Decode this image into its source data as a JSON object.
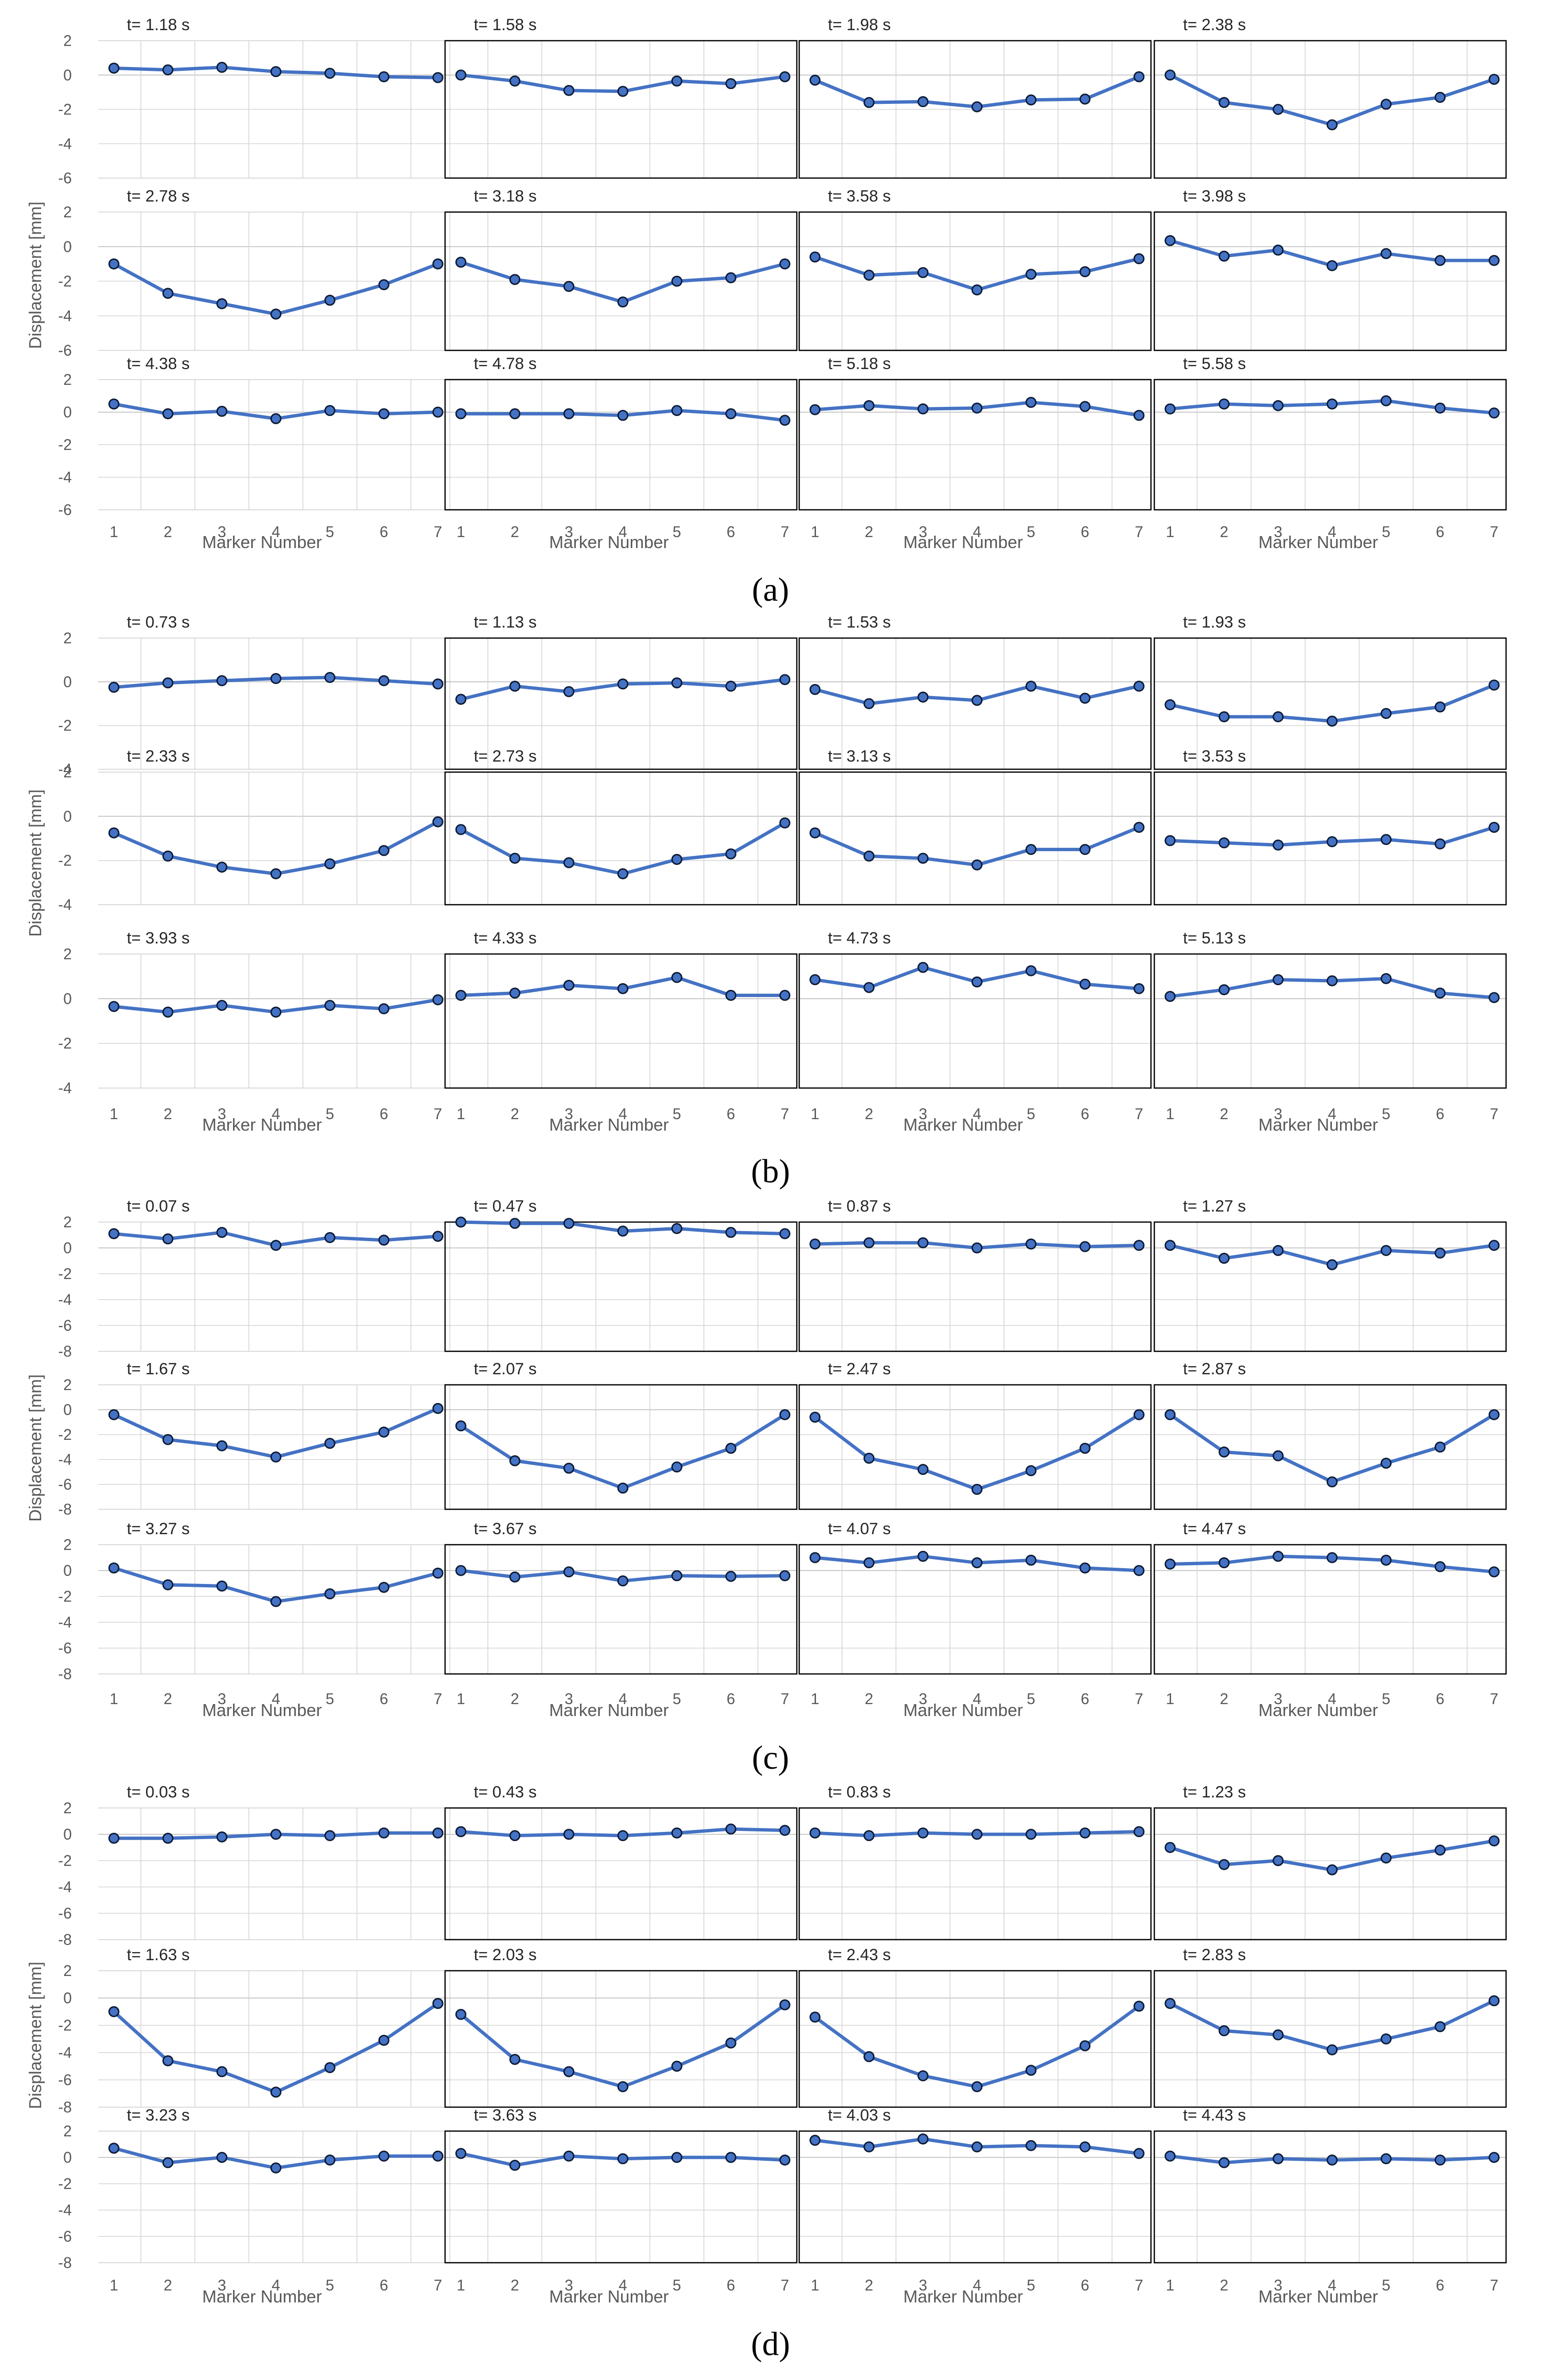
{
  "colors": {
    "series": "#4472c4",
    "marker_edge": "#0c1a33",
    "frame": "#000000",
    "grid": "#d4d4d4"
  },
  "chart_data": [
    {
      "type": "line",
      "label": "(a)",
      "ylabel": "Displacement [mm]",
      "xlabel": "Marker Number",
      "categories": [
        1,
        2,
        3,
        4,
        5,
        6,
        7
      ],
      "ylim": [
        -6,
        2
      ],
      "yticks": [
        2,
        0,
        -2,
        -4,
        -6
      ],
      "grid": true,
      "panels": [
        {
          "title": "t=  1.18 s",
          "values": [
            0.4,
            0.3,
            0.45,
            0.2,
            0.1,
            -0.1,
            -0.15
          ]
        },
        {
          "title": "t=  1.58  s",
          "values": [
            0.0,
            -0.35,
            -0.9,
            -0.95,
            -0.35,
            -0.5,
            -0.1
          ]
        },
        {
          "title": "t=  1.98 s",
          "values": [
            -0.3,
            -1.6,
            -1.55,
            -1.85,
            -1.45,
            -1.4,
            -0.1
          ]
        },
        {
          "title": "t=  2.38 s",
          "values": [
            0.0,
            -1.6,
            -2.0,
            -2.9,
            -1.7,
            -1.3,
            -0.25
          ]
        },
        {
          "title": "t=  2.78 s",
          "values": [
            -1.0,
            -2.7,
            -3.3,
            -3.9,
            -3.1,
            -2.2,
            -1.0
          ]
        },
        {
          "title": "t=  3.18  s",
          "values": [
            -0.9,
            -1.9,
            -2.3,
            -3.2,
            -2.0,
            -1.8,
            -1.0
          ]
        },
        {
          "title": "t=  3.58 s",
          "values": [
            -0.6,
            -1.65,
            -1.5,
            -2.5,
            -1.6,
            -1.45,
            -0.7
          ]
        },
        {
          "title": "t=  3.98 s",
          "values": [
            0.35,
            -0.55,
            -0.2,
            -1.1,
            -0.4,
            -0.8,
            -0.8
          ]
        },
        {
          "title": "t=  4.38 s",
          "values": [
            0.5,
            -0.1,
            0.05,
            -0.4,
            0.1,
            -0.1,
            0.0
          ]
        },
        {
          "title": "t=  4.78 s",
          "values": [
            -0.1,
            -0.1,
            -0.1,
            -0.2,
            0.1,
            -0.1,
            -0.5
          ]
        },
        {
          "title": "t=  5.18 s",
          "values": [
            0.15,
            0.4,
            0.2,
            0.25,
            0.6,
            0.35,
            -0.2
          ]
        },
        {
          "title": "t=  5.58 s",
          "values": [
            0.2,
            0.5,
            0.4,
            0.5,
            0.7,
            0.25,
            -0.05
          ]
        }
      ]
    },
    {
      "type": "line",
      "label": "(b)",
      "ylabel": "Displacement [mm]",
      "xlabel": "Marker Number",
      "categories": [
        1,
        2,
        3,
        4,
        5,
        6,
        7
      ],
      "ylim": [
        -4,
        2
      ],
      "yticks": [
        2,
        0,
        -2,
        -4
      ],
      "grid": true,
      "panels": [
        {
          "title": "t=  0.73  s",
          "values": [
            -0.25,
            -0.05,
            0.05,
            0.15,
            0.2,
            0.05,
            -0.1
          ]
        },
        {
          "title": "t=  1.13 s",
          "values": [
            -0.8,
            -0.2,
            -0.45,
            -0.1,
            -0.05,
            -0.2,
            0.1
          ]
        },
        {
          "title": "t=  1.53 s",
          "values": [
            -0.35,
            -1.0,
            -0.7,
            -0.85,
            -0.2,
            -0.75,
            -0.2
          ]
        },
        {
          "title": "t=  1.93 s",
          "values": [
            -1.05,
            -1.6,
            -1.6,
            -1.8,
            -1.45,
            -1.15,
            -0.15
          ]
        },
        {
          "title": "t=  2.33 s",
          "values": [
            -0.75,
            -1.8,
            -2.3,
            -2.6,
            -2.15,
            -1.55,
            -0.25
          ]
        },
        {
          "title": "t=  2.73 s",
          "values": [
            -0.6,
            -1.9,
            -2.1,
            -2.6,
            -1.95,
            -1.7,
            -0.3
          ]
        },
        {
          "title": "t=  3.13 s",
          "values": [
            -0.75,
            -1.8,
            -1.9,
            -2.2,
            -1.5,
            -1.5,
            -0.5
          ]
        },
        {
          "title": "t=  3.53 s",
          "values": [
            -1.1,
            -1.2,
            -1.3,
            -1.15,
            -1.05,
            -1.25,
            -0.5
          ]
        },
        {
          "title": "t=  3.93 s",
          "values": [
            -0.35,
            -0.6,
            -0.3,
            -0.6,
            -0.3,
            -0.45,
            -0.05
          ]
        },
        {
          "title": "t=  4.33 s",
          "values": [
            0.15,
            0.25,
            0.6,
            0.45,
            0.95,
            0.15,
            0.15
          ]
        },
        {
          "title": "t=  4.73 s",
          "values": [
            0.85,
            0.5,
            1.4,
            0.75,
            1.25,
            0.65,
            0.45
          ]
        },
        {
          "title": "t=  5.13 s",
          "values": [
            0.1,
            0.4,
            0.85,
            0.8,
            0.9,
            0.25,
            0.05
          ]
        }
      ]
    },
    {
      "type": "line",
      "label": "(c)",
      "ylabel": "Displacement [mm]",
      "xlabel": "Marker Number",
      "categories": [
        1,
        2,
        3,
        4,
        5,
        6,
        7
      ],
      "ylim": [
        -8,
        2
      ],
      "yticks": [
        2,
        0,
        -2,
        -4,
        -6,
        -8
      ],
      "grid": true,
      "panels": [
        {
          "title": "t=  0.07 s",
          "values": [
            1.1,
            0.7,
            1.2,
            0.2,
            0.8,
            0.6,
            0.9
          ]
        },
        {
          "title": "t=  0.47 s",
          "values": [
            2.0,
            1.9,
            1.9,
            1.3,
            1.5,
            1.2,
            1.1
          ]
        },
        {
          "title": "t=  0.87 s",
          "values": [
            0.3,
            0.4,
            0.4,
            0.0,
            0.3,
            0.1,
            0.2
          ]
        },
        {
          "title": "t=  1.27 s",
          "values": [
            0.2,
            -0.8,
            -0.2,
            -1.3,
            -0.2,
            -0.4,
            0.2
          ]
        },
        {
          "title": "t=  1.67 s",
          "values": [
            -0.4,
            -2.4,
            -2.9,
            -3.8,
            -2.7,
            -1.8,
            0.1
          ]
        },
        {
          "title": "t=  2.07 s",
          "values": [
            -1.3,
            -4.1,
            -4.7,
            -6.3,
            -4.6,
            -3.1,
            -0.4
          ]
        },
        {
          "title": "t=  2.47 s",
          "values": [
            -0.6,
            -3.9,
            -4.8,
            -6.4,
            -4.9,
            -3.1,
            -0.4
          ]
        },
        {
          "title": "t=  2.87 s",
          "values": [
            -0.4,
            -3.4,
            -3.7,
            -5.8,
            -4.3,
            -3.0,
            -0.4
          ]
        },
        {
          "title": "t=  3.27 s",
          "values": [
            0.2,
            -1.1,
            -1.2,
            -2.4,
            -1.8,
            -1.3,
            -0.2
          ]
        },
        {
          "title": "t=  3.67 s",
          "values": [
            0.0,
            -0.5,
            -0.1,
            -0.8,
            -0.4,
            -0.45,
            -0.4
          ]
        },
        {
          "title": "t=  4.07 s",
          "values": [
            1.0,
            0.6,
            1.1,
            0.6,
            0.8,
            0.2,
            0.0
          ]
        },
        {
          "title": "t=  4.47 s",
          "values": [
            0.5,
            0.6,
            1.1,
            1.0,
            0.8,
            0.3,
            -0.1
          ]
        }
      ]
    },
    {
      "type": "line",
      "label": "(d)",
      "ylabel": "Displacement [mm]",
      "xlabel": "Marker Number",
      "categories": [
        1,
        2,
        3,
        4,
        5,
        6,
        7
      ],
      "ylim": [
        -8,
        2
      ],
      "yticks": [
        2,
        0,
        -2,
        -4,
        -6,
        -8
      ],
      "grid": true,
      "panels": [
        {
          "title": "t=  0.03 s",
          "values": [
            -0.3,
            -0.3,
            -0.2,
            0.0,
            -0.1,
            0.1,
            0.1
          ]
        },
        {
          "title": "t=  0.43 s",
          "values": [
            0.2,
            -0.1,
            0.0,
            -0.1,
            0.1,
            0.4,
            0.3
          ]
        },
        {
          "title": "t=  0.83 s",
          "values": [
            0.1,
            -0.1,
            0.1,
            0.0,
            0.0,
            0.1,
            0.2
          ]
        },
        {
          "title": "t=  1.23 s",
          "values": [
            -1.0,
            -2.3,
            -2.0,
            -2.7,
            -1.8,
            -1.2,
            -0.5
          ]
        },
        {
          "title": "t=  1.63 s",
          "values": [
            -1.0,
            -4.6,
            -5.4,
            -6.9,
            -5.1,
            -3.1,
            -0.4
          ]
        },
        {
          "title": "t=  2.03 s",
          "values": [
            -1.2,
            -4.5,
            -5.4,
            -6.5,
            -5.0,
            -3.3,
            -0.5
          ]
        },
        {
          "title": "t=  2.43 s",
          "values": [
            -1.4,
            -4.3,
            -5.7,
            -6.5,
            -5.3,
            -3.5,
            -0.6
          ]
        },
        {
          "title": "t=  2.83 s",
          "values": [
            -0.4,
            -2.4,
            -2.7,
            -3.8,
            -3.0,
            -2.1,
            -0.2
          ]
        },
        {
          "title": "t=  3.23 s",
          "values": [
            0.7,
            -0.4,
            0.0,
            -0.8,
            -0.2,
            0.1,
            0.1
          ]
        },
        {
          "title": "t=  3.63 s",
          "values": [
            0.3,
            -0.6,
            0.1,
            -0.1,
            0.0,
            0.0,
            -0.2
          ]
        },
        {
          "title": "t=  4.03 s",
          "values": [
            1.3,
            0.8,
            1.4,
            0.8,
            0.9,
            0.8,
            0.3
          ]
        },
        {
          "title": "t=  4.43 s",
          "values": [
            0.1,
            -0.4,
            -0.1,
            -0.2,
            -0.1,
            -0.2,
            0.0
          ]
        }
      ]
    }
  ]
}
